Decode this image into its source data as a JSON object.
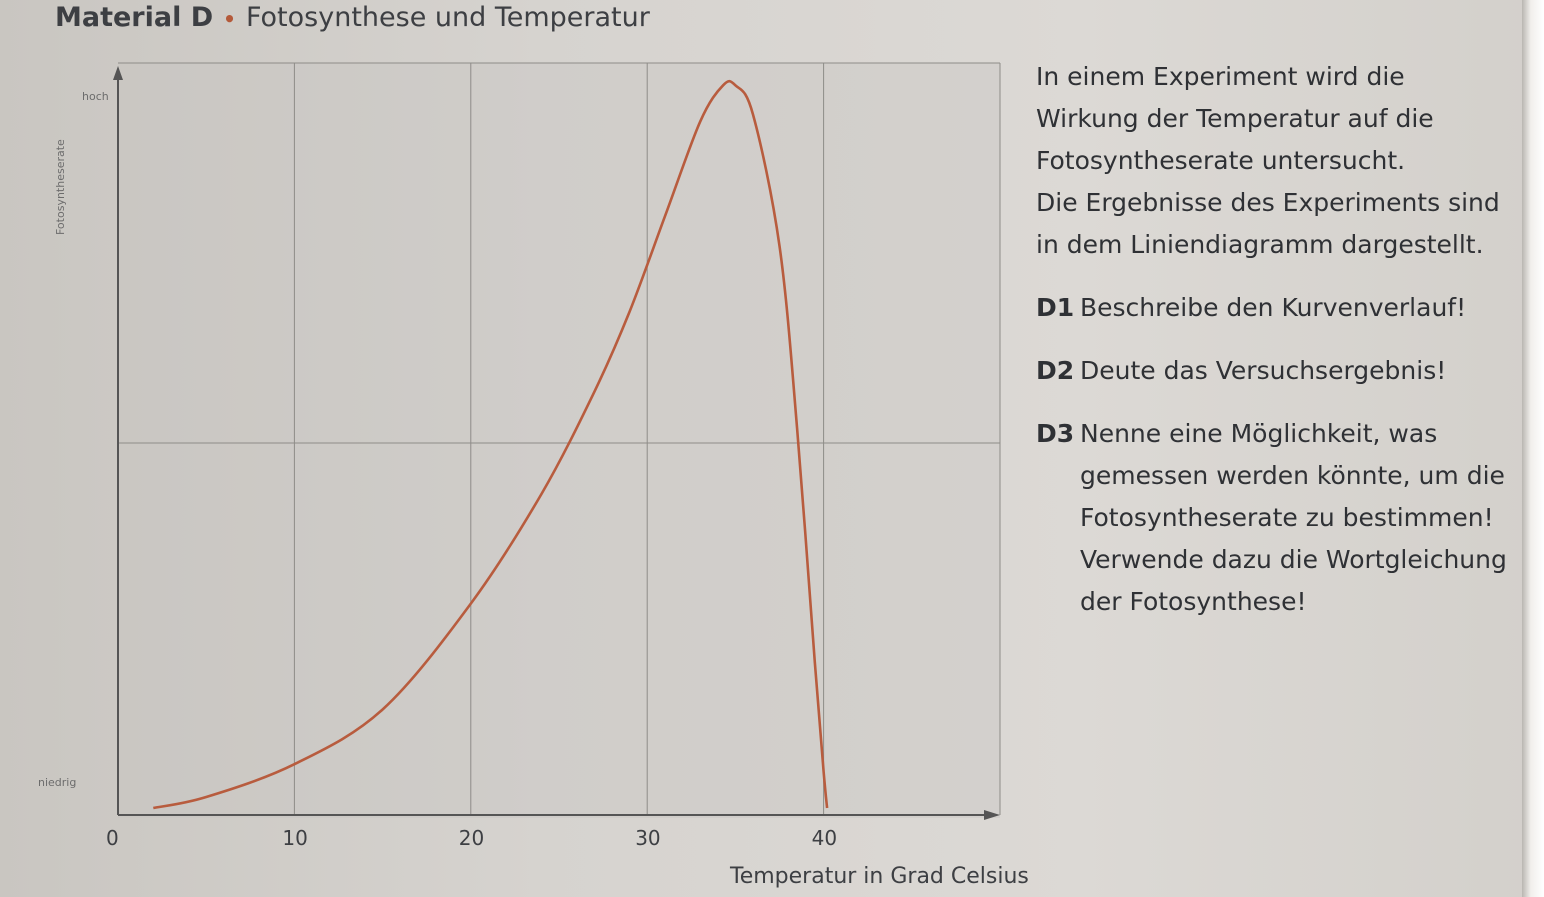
{
  "header": {
    "material": "Material D",
    "separator": "•",
    "subject": "Fotosynthese und Temperatur"
  },
  "text_block": {
    "intro_lines": [
      "In einem Experiment wird die",
      "Wirkung der Temperatur auf die",
      "Fotosyntheserate untersucht.",
      "Die Ergebnisse des Experiments sind",
      "in dem Liniendiagramm dargestellt."
    ],
    "tasks": [
      {
        "id": "D1",
        "text": "Beschreibe den Kurvenverlauf!"
      },
      {
        "id": "D2",
        "text": "Deute das Versuchsergebnis!"
      },
      {
        "id": "D3",
        "text": "Nenne eine Möglichkeit, was gemessen werden könnte, um die Fotosyntheserate zu bestimmen! Verwende dazu die Wortgleichung der Fotosynthese!"
      }
    ]
  },
  "chart_data": {
    "type": "line",
    "title": "",
    "xlabel": "Temperatur in Grad Celsius",
    "ylabel": "Fotosyntheserate",
    "y_tick_labels": {
      "high": "hoch",
      "low": "niedrig"
    },
    "x_ticks": [
      0,
      10,
      20,
      30,
      40
    ],
    "xlim": [
      0,
      50
    ],
    "ylim": [
      0,
      100
    ],
    "grid": true,
    "line_color": "#b85c3e",
    "series": [
      {
        "name": "",
        "x": [
          2,
          5,
          10,
          15,
          20,
          24,
          27,
          29,
          31,
          33,
          34.3,
          35,
          36,
          37.5,
          38.5,
          39.5,
          40,
          40.2
        ],
        "y": [
          0,
          1.5,
          6,
          13.5,
          28,
          43,
          57,
          68,
          81,
          94,
          99,
          99,
          95,
          77,
          52,
          20,
          5,
          0
        ]
      }
    ]
  }
}
